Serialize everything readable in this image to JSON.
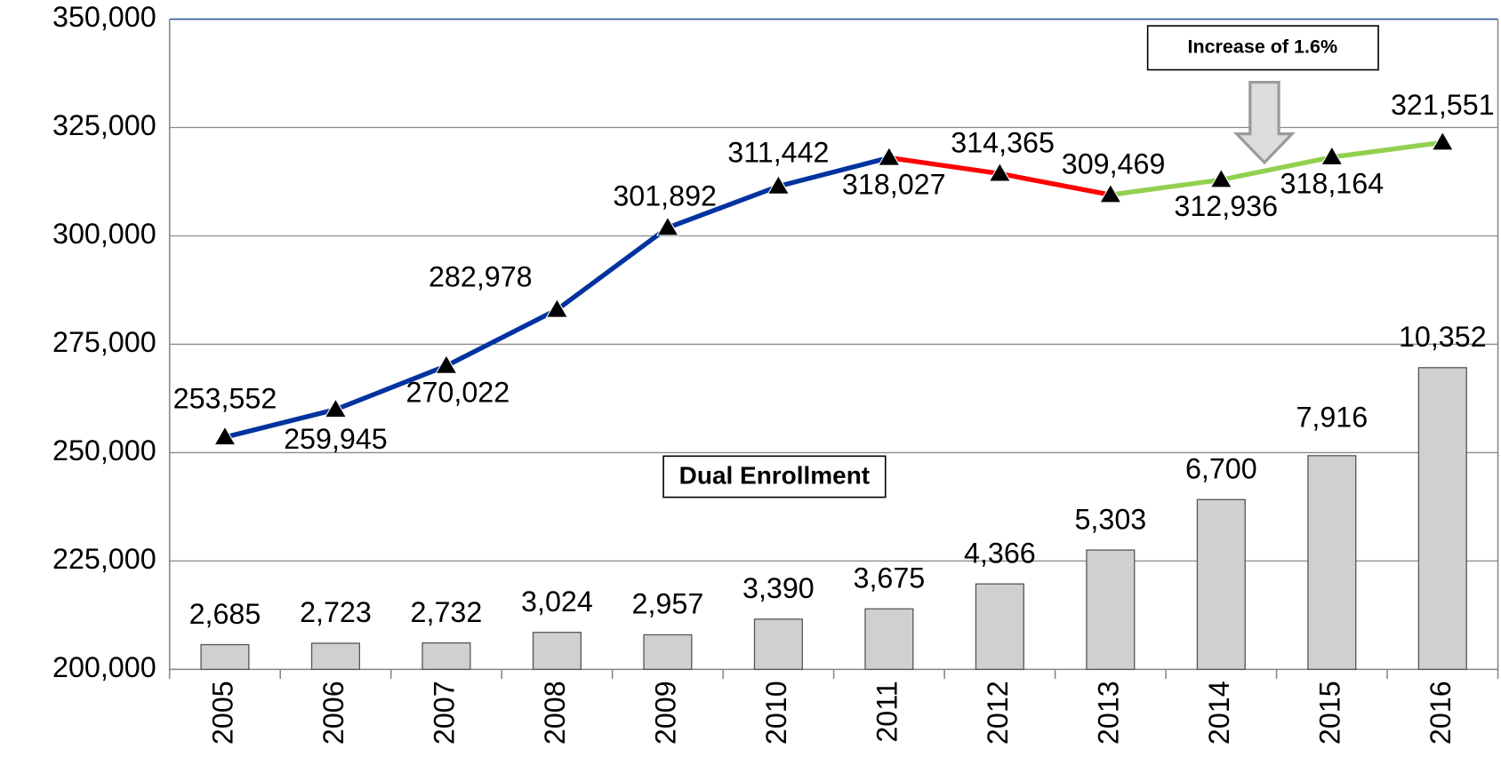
{
  "chart_data": {
    "type": "combo",
    "categories": [
      "2005",
      "2006",
      "2007",
      "2008",
      "2009",
      "2010",
      "2011",
      "2012",
      "2013",
      "2014",
      "2015",
      "2016"
    ],
    "series": [
      {
        "type": "line",
        "values": [
          253552,
          259945,
          270022,
          282978,
          301892,
          311442,
          318027,
          314365,
          309469,
          312936,
          318164,
          321551
        ],
        "value_labels": [
          "253,552",
          "259,945",
          "270,022",
          "282,978",
          "301,892",
          "311,442",
          "318,027",
          "314,365",
          "309,469",
          "312,936",
          "318,164",
          "321,551"
        ],
        "segment_colors": [
          "#0033a0",
          "#0033a0",
          "#0033a0",
          "#0033a0",
          "#0033a0",
          "#0033a0",
          "#ff0000",
          "#ff0000",
          "#92d050",
          "#92d050",
          "#92d050"
        ],
        "marker_color": "#000000"
      },
      {
        "type": "bar",
        "axis": "y2",
        "color": "#d0d0d0",
        "values": [
          2685,
          2723,
          2732,
          3024,
          2957,
          3390,
          3675,
          4366,
          5303,
          6700,
          7916,
          10352
        ],
        "value_labels": [
          "2,685",
          "2,723",
          "2,732",
          "3,024",
          "2,957",
          "3,390",
          "3,675",
          "4,366",
          "5,303",
          "6,700",
          "7,916",
          "10,352"
        ]
      }
    ],
    "annotations": [
      "Increase of 1.6%",
      "Dual Enrollment"
    ],
    "ylim": [
      200000,
      350000
    ],
    "yticks": [
      {
        "value": 200000,
        "label": "200,000"
      },
      {
        "value": 225000,
        "label": "225,000"
      },
      {
        "value": 250000,
        "label": "250,000"
      },
      {
        "value": 275000,
        "label": "275,000"
      },
      {
        "value": 300000,
        "label": "300,000"
      },
      {
        "value": 325000,
        "label": "325,000"
      },
      {
        "value": 350000,
        "label": "350,000"
      }
    ],
    "y2lim": [
      2000,
      20000
    ],
    "grid": true
  }
}
